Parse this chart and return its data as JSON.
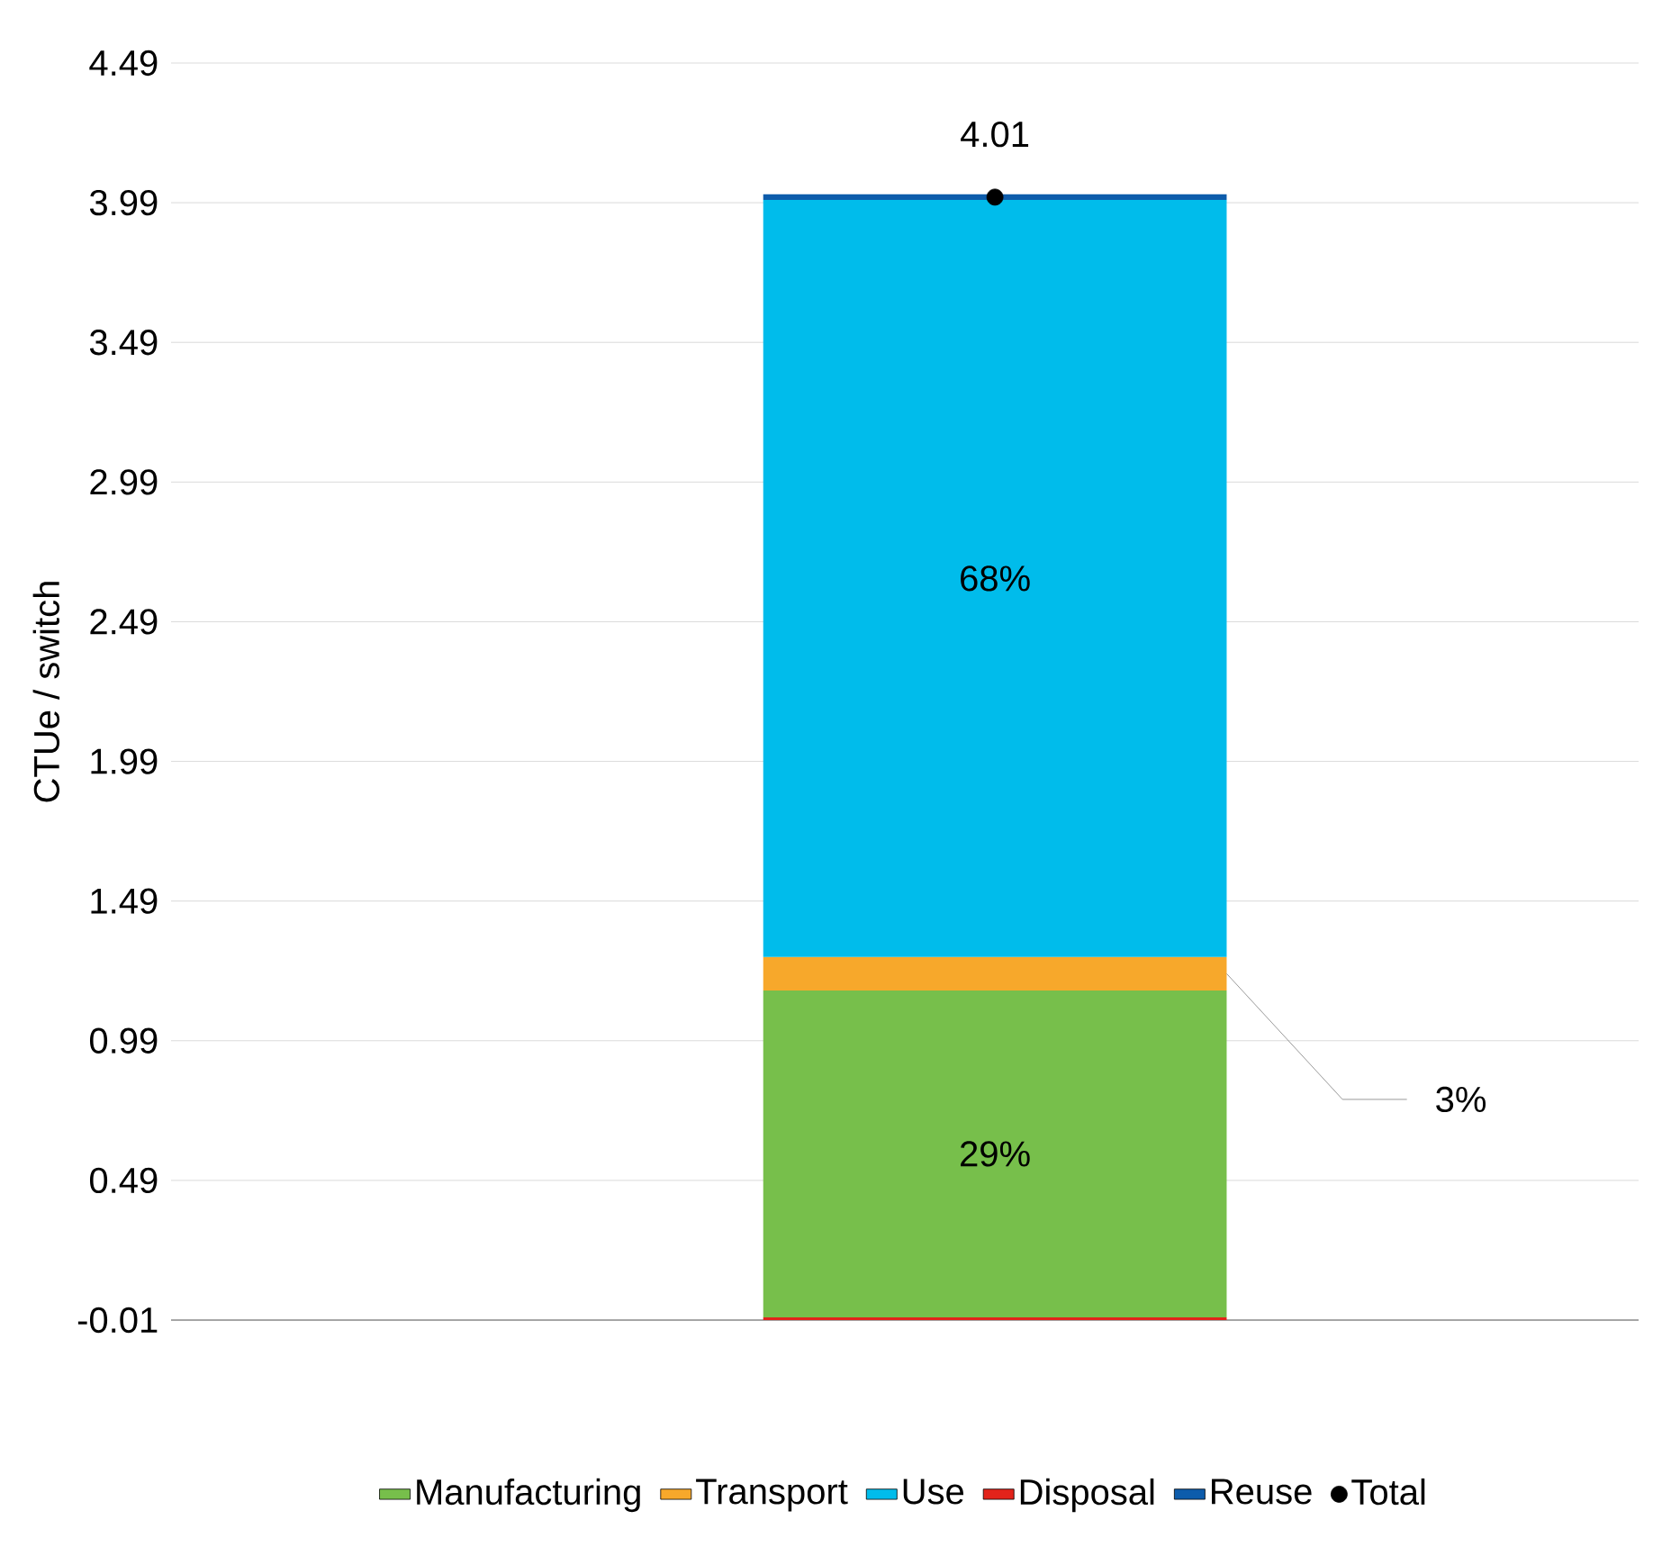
{
  "chart_data": {
    "type": "bar",
    "stacked": true,
    "ylabel": "CTUe / switch",
    "categories": [
      null
    ],
    "ylim": [
      -0.01,
      4.49
    ],
    "yticks": [
      -0.01,
      0.49,
      0.99,
      1.49,
      1.99,
      2.49,
      2.99,
      3.49,
      3.99,
      4.49
    ],
    "grid": "y",
    "legend": "bottom",
    "annotations": [
      "29%",
      "3%",
      "68%"
    ],
    "series": [
      {
        "name": "Manufacturing",
        "color": "#77bf4b",
        "values": [
          1.17
        ]
      },
      {
        "name": "Transport",
        "color": "#f7a82b",
        "values": [
          0.12
        ]
      },
      {
        "name": "Use",
        "color": "#00bceb",
        "values": [
          2.71
        ]
      },
      {
        "name": "Disposal",
        "color": "#e2231a",
        "values": [
          -0.01
        ]
      },
      {
        "name": "Reuse",
        "color": "#0d5cab",
        "values": [
          0.02
        ]
      },
      {
        "name": "Total",
        "type": "scatter",
        "color": "#000000",
        "values": [
          4.01
        ],
        "value_labels": [
          "4.01"
        ]
      }
    ]
  }
}
